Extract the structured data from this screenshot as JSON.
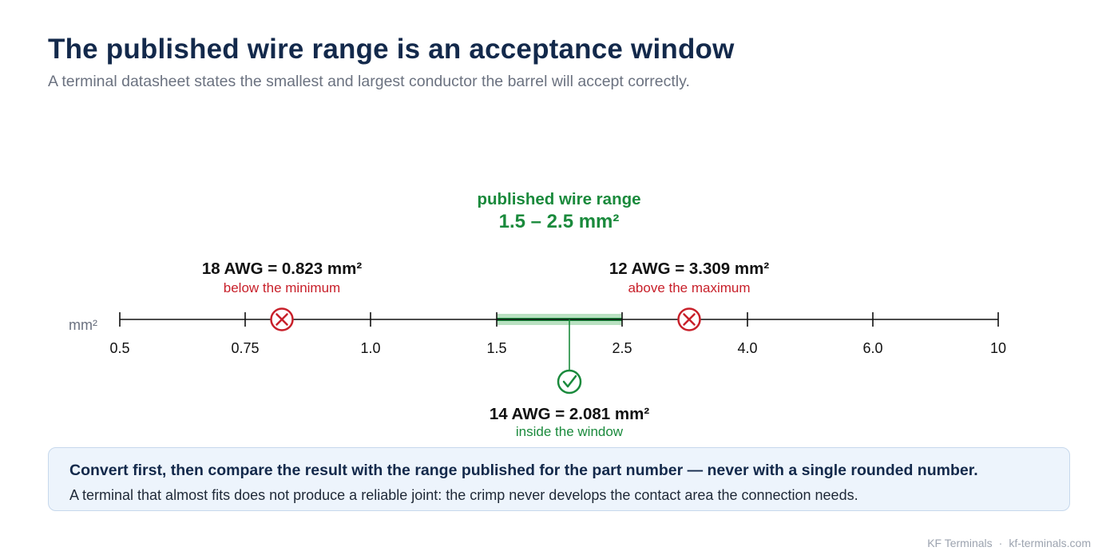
{
  "header": {
    "title": "The published wire range is an acceptance window",
    "subtitle": "A terminal datasheet states the smallest and largest conductor the barrel will accept correctly."
  },
  "axis": {
    "unit_label": "mm²",
    "ticks": [
      "0.5",
      "0.75",
      "1.0",
      "1.5",
      "2.5",
      "4.0",
      "6.0",
      "10"
    ]
  },
  "window": {
    "label": "published wire range",
    "range_text": "1.5 – 2.5 mm²",
    "min_mm2": 1.5,
    "max_mm2": 2.5
  },
  "markers": [
    {
      "title": "18 AWG = 0.823 mm²",
      "status": "below the minimum",
      "value_mm2": 0.823,
      "accepted": false,
      "icon": "cross-circle-icon"
    },
    {
      "title": "14 AWG = 2.081 mm²",
      "status": "inside the window",
      "value_mm2": 2.081,
      "accepted": true,
      "icon": "check-circle-icon"
    },
    {
      "title": "12 AWG = 3.309 mm²",
      "status": "above the maximum",
      "value_mm2": 3.309,
      "accepted": false,
      "icon": "cross-circle-icon"
    }
  ],
  "callout": {
    "headline": "Convert first, then compare the result with the range published for the part number — never with a single rounded number.",
    "body": "A terminal that almost fits does not produce a reliable joint: the crimp never develops the contact area the connection needs."
  },
  "footer": {
    "brand": "KF Terminals",
    "separator": "·",
    "site": "kf-terminals.com"
  },
  "colors": {
    "accept": "#1a8a3c",
    "reject": "#c8202a",
    "window_fill": "#9fd4a9",
    "heading": "#13294b"
  }
}
